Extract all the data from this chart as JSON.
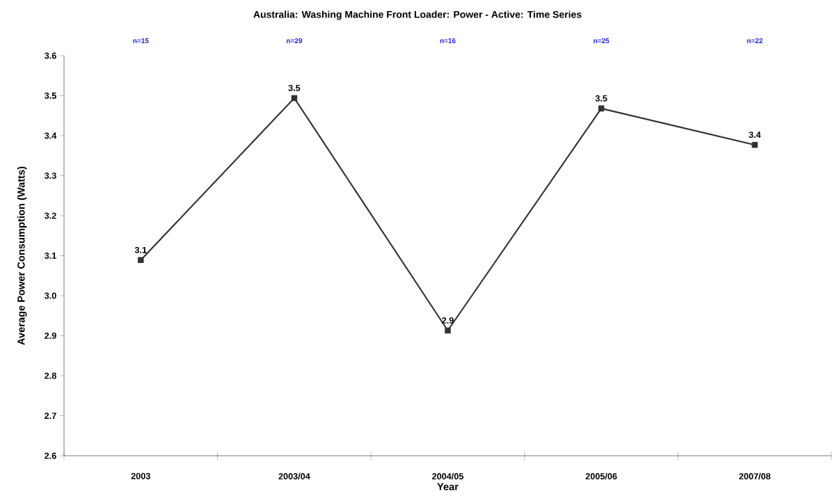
{
  "chart_data": {
    "type": "line",
    "title": "Australia: Washing Machine Front Loader: Power - Active: Time Series",
    "xlabel": "Year",
    "ylabel": "Average Power Consumption (Watts)",
    "categories": [
      "2003",
      "2003/04",
      "2004/05",
      "2005/06",
      "2007/08"
    ],
    "values": [
      3.089,
      3.494,
      2.913,
      3.468,
      3.377
    ],
    "value_labels": [
      "3.1",
      "3.5",
      "2.9",
      "3.5",
      "3.4"
    ],
    "color": "#333333",
    "marker": "square",
    "ylim": [
      2.6,
      3.6
    ],
    "yticks": [
      "2.6",
      "2.7",
      "2.8",
      "2.9",
      "3.0",
      "3.1",
      "3.2",
      "3.3",
      "3.4",
      "3.5",
      "3.6"
    ],
    "annotations": [
      "n=15",
      "n=29",
      "n=16",
      "n=25",
      "n=22"
    ]
  }
}
